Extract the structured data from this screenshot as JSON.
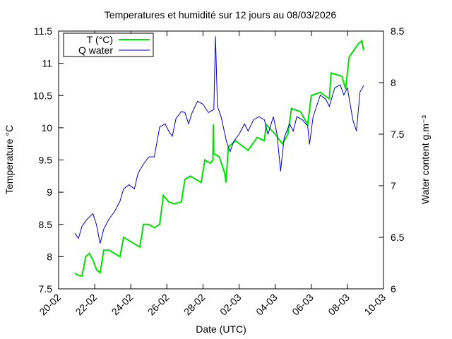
{
  "chart_data": {
    "type": "line",
    "title": "Temperatures et humidité sur 12 jours au 08/03/2026",
    "xlabel": "Date (UTC)",
    "ylabel": "Temperature °C",
    "y2label": "Water content g.m⁻³",
    "xlim": [
      0,
      18
    ],
    "xticks": [
      {
        "value": 0,
        "label": "20-02"
      },
      {
        "value": 2,
        "label": "22-02"
      },
      {
        "value": 4,
        "label": "24-02"
      },
      {
        "value": 6,
        "label": "26-02"
      },
      {
        "value": 8,
        "label": "28-02"
      },
      {
        "value": 10,
        "label": "02-03"
      },
      {
        "value": 12,
        "label": "04-03"
      },
      {
        "value": 14,
        "label": "06-03"
      },
      {
        "value": 16,
        "label": "08-03"
      },
      {
        "value": 18,
        "label": "10-03"
      }
    ],
    "ylim": [
      7.5,
      11.5
    ],
    "yticks": [
      7.5,
      8,
      8.5,
      9,
      9.5,
      10,
      10.5,
      11,
      11.5
    ],
    "y2lim": [
      6,
      8.5
    ],
    "y2ticks": [
      6,
      6.5,
      7,
      7.5,
      8,
      8.5
    ],
    "legend": "upper-left",
    "series": [
      {
        "name": "T (°C)",
        "color": "#00e000",
        "axis": "y",
        "x": [
          0.9,
          1.0,
          1.3,
          1.5,
          1.7,
          1.9,
          2.1,
          2.3,
          2.5,
          2.8,
          3.1,
          3.4,
          3.6,
          3.9,
          4.2,
          4.5,
          4.7,
          5.0,
          5.3,
          5.6,
          5.8,
          6.1,
          6.4,
          6.8,
          7.0,
          7.3,
          7.6,
          7.9,
          8.1,
          8.4,
          8.55,
          8.57,
          8.6,
          8.9,
          9.2,
          9.27,
          9.4,
          9.8,
          10.5,
          11.0,
          11.4,
          11.5,
          12.0,
          12.4,
          12.7,
          12.9,
          13.4,
          13.8,
          14.0,
          14.5,
          15.0,
          15.1,
          15.7,
          15.9,
          16.1,
          16.6,
          16.8,
          16.9
        ],
        "values": [
          7.75,
          7.72,
          7.7,
          8.0,
          8.05,
          7.95,
          7.8,
          7.75,
          8.1,
          8.1,
          8.05,
          8.0,
          8.3,
          8.25,
          8.2,
          8.15,
          8.5,
          8.5,
          8.45,
          8.5,
          8.95,
          8.85,
          8.82,
          8.85,
          9.2,
          9.25,
          9.2,
          9.15,
          9.5,
          9.45,
          9.5,
          10.05,
          9.6,
          9.55,
          9.3,
          9.15,
          9.7,
          9.8,
          9.65,
          9.85,
          9.8,
          10.05,
          9.9,
          9.75,
          9.9,
          10.3,
          10.25,
          10.05,
          10.5,
          10.55,
          10.45,
          10.85,
          10.8,
          10.6,
          11.1,
          11.3,
          11.35,
          11.2
        ]
      },
      {
        "name": "Q water",
        "color": "#0000c0",
        "axis": "y2",
        "x": [
          0.9,
          1.1,
          1.3,
          1.6,
          1.9,
          2.1,
          2.3,
          2.5,
          2.8,
          3.1,
          3.4,
          3.6,
          3.9,
          4.2,
          4.4,
          4.7,
          5.0,
          5.3,
          5.6,
          5.9,
          6.1,
          6.3,
          6.5,
          6.8,
          7.0,
          7.2,
          7.4,
          7.7,
          8.0,
          8.3,
          8.6,
          8.69,
          8.8,
          9.0,
          9.3,
          9.5,
          9.7,
          10.0,
          10.3,
          10.5,
          10.8,
          11.1,
          11.4,
          11.6,
          11.9,
          12.1,
          12.3,
          12.5,
          12.8,
          13.0,
          13.2,
          13.5,
          13.8,
          13.9,
          14.1,
          14.5,
          14.8,
          15.0,
          15.3,
          15.6,
          15.8,
          16.0,
          16.3,
          16.5,
          16.7,
          16.9
        ],
        "values": [
          6.54,
          6.49,
          6.61,
          6.68,
          6.73,
          6.62,
          6.44,
          6.58,
          6.68,
          6.75,
          6.85,
          6.97,
          7.01,
          6.97,
          7.12,
          7.21,
          7.28,
          7.28,
          7.57,
          7.6,
          7.53,
          7.48,
          7.65,
          7.72,
          7.71,
          7.6,
          7.71,
          7.82,
          7.79,
          7.71,
          7.74,
          8.45,
          7.77,
          7.67,
          7.43,
          7.33,
          7.43,
          7.5,
          7.6,
          7.53,
          7.64,
          7.67,
          7.64,
          7.5,
          7.67,
          7.5,
          7.14,
          7.47,
          7.6,
          7.53,
          7.67,
          7.64,
          7.58,
          7.4,
          7.67,
          7.88,
          7.84,
          7.77,
          7.95,
          7.98,
          7.88,
          7.95,
          7.64,
          7.53,
          7.91,
          7.97
        ]
      }
    ]
  }
}
